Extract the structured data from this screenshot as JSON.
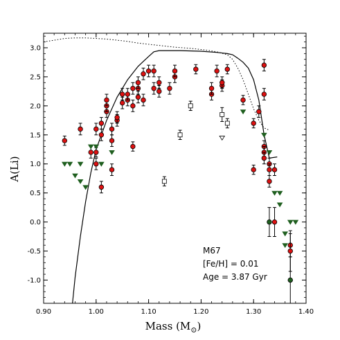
{
  "chart_data": {
    "type": "scatter",
    "title": "",
    "xlabel_main": "Mass (M",
    "xlabel_sub": "⊙",
    "xlabel_close": ")",
    "ylabel": "A(Li)",
    "xlim": [
      0.9,
      1.4
    ],
    "ylim": [
      -1.4,
      3.25
    ],
    "xticks": [
      0.9,
      1.0,
      1.1,
      1.2,
      1.3,
      1.4
    ],
    "xtick_labels": [
      "0.90",
      "1.00",
      "1.10",
      "1.20",
      "1.30",
      "1.40"
    ],
    "yticks": [
      -1.0,
      -0.5,
      0.0,
      0.5,
      1.0,
      1.5,
      2.0,
      2.5,
      3.0
    ],
    "ytick_labels": [
      "-1.0",
      "-0.5",
      "0.0",
      "0.5",
      "1.0",
      "1.5",
      "2.0",
      "2.5",
      "3.0"
    ],
    "annotation": [
      "M67",
      "[Fe/H] = 0.01",
      "Age = 3.87 Gyr"
    ],
    "colors": {
      "detection": "#dd1111",
      "upper_limit": "#1f5f1f",
      "open_square": "#ffffff",
      "axes": "#000000"
    },
    "series": [
      {
        "marker": "filled-circle",
        "points": [
          [
            0.94,
            1.4,
            0.08
          ],
          [
            0.97,
            1.6,
            0.1
          ],
          [
            0.99,
            1.2,
            0.1
          ],
          [
            1.0,
            1.0,
            0.1
          ],
          [
            1.0,
            1.2,
            0.08
          ],
          [
            1.0,
            1.6,
            0.1
          ],
          [
            1.01,
            0.6,
            0.1
          ],
          [
            1.01,
            1.5,
            0.1
          ],
          [
            1.01,
            1.7,
            0.1
          ],
          [
            1.02,
            1.9,
            0.1
          ],
          [
            1.02,
            2.0,
            0.1
          ],
          [
            1.02,
            2.1,
            0.1
          ],
          [
            1.03,
            0.9,
            0.1
          ],
          [
            1.03,
            1.4,
            0.1
          ],
          [
            1.03,
            1.6,
            0.1
          ],
          [
            1.04,
            1.75,
            0.1
          ],
          [
            1.04,
            1.8,
            0.1
          ],
          [
            1.05,
            2.05,
            0.1
          ],
          [
            1.05,
            2.2,
            0.1
          ],
          [
            1.06,
            2.1,
            0.1
          ],
          [
            1.06,
            2.2,
            0.1
          ],
          [
            1.07,
            1.3,
            0.08
          ],
          [
            1.07,
            2.0,
            0.1
          ],
          [
            1.07,
            2.3,
            0.1
          ],
          [
            1.08,
            2.15,
            0.1
          ],
          [
            1.08,
            2.3,
            0.1
          ],
          [
            1.08,
            2.4,
            0.1
          ],
          [
            1.09,
            2.1,
            0.1
          ],
          [
            1.09,
            2.55,
            0.1
          ],
          [
            1.1,
            2.6,
            0.1
          ],
          [
            1.11,
            2.3,
            0.1
          ],
          [
            1.11,
            2.6,
            0.1
          ],
          [
            1.12,
            2.25,
            0.1
          ],
          [
            1.12,
            2.4,
            0.1
          ],
          [
            1.14,
            2.3,
            0.1
          ],
          [
            1.15,
            2.5,
            0.1
          ],
          [
            1.15,
            2.6,
            0.1
          ],
          [
            1.19,
            2.63,
            0.08
          ],
          [
            1.22,
            2.2,
            0.1
          ],
          [
            1.22,
            2.3,
            0.1
          ],
          [
            1.23,
            2.6,
            0.1
          ],
          [
            1.24,
            2.35,
            0.1
          ],
          [
            1.24,
            2.4,
            0.1
          ],
          [
            1.25,
            2.63,
            0.08
          ],
          [
            1.28,
            2.1,
            0.08
          ],
          [
            1.3,
            1.7,
            0.08
          ],
          [
            1.3,
            0.9,
            0.08
          ],
          [
            1.31,
            1.9,
            0.1
          ],
          [
            1.32,
            2.7,
            0.1
          ],
          [
            1.32,
            2.2,
            0.1
          ],
          [
            1.32,
            1.3,
            0.1
          ],
          [
            1.32,
            1.2,
            0.1
          ],
          [
            1.32,
            1.1,
            0.1
          ],
          [
            1.33,
            1.0,
            0.1
          ],
          [
            1.33,
            0.9,
            0.1
          ],
          [
            1.33,
            0.7,
            0.1
          ],
          [
            1.34,
            0.9,
            0.1
          ],
          [
            1.34,
            0.0,
            0.25
          ],
          [
            1.37,
            -0.4,
            0.2
          ],
          [
            1.37,
            -0.5,
            0.35
          ]
        ]
      },
      {
        "marker": "filled-circle-upper-limit",
        "points": [
          [
            1.33,
            0.0,
            0.25
          ],
          [
            1.37,
            -1.0,
            0.4
          ]
        ]
      },
      {
        "marker": "open-square",
        "points": [
          [
            1.13,
            0.7,
            0.08
          ],
          [
            1.16,
            1.5,
            0.08
          ],
          [
            1.18,
            2.0,
            0.08
          ],
          [
            1.24,
            1.85,
            0.12
          ],
          [
            1.25,
            1.7,
            0.08
          ]
        ]
      },
      {
        "marker": "open-triangle-down",
        "points": [
          [
            1.24,
            1.45
          ]
        ]
      },
      {
        "marker": "filled-triangle-down",
        "points": [
          [
            0.94,
            1.0
          ],
          [
            0.95,
            1.0
          ],
          [
            0.96,
            0.8
          ],
          [
            0.97,
            1.0
          ],
          [
            0.97,
            0.7
          ],
          [
            0.98,
            0.6
          ],
          [
            0.99,
            1.3
          ],
          [
            1.0,
            1.3
          ],
          [
            1.01,
            1.0
          ],
          [
            1.03,
            1.2
          ],
          [
            1.28,
            1.9
          ],
          [
            1.32,
            1.5
          ],
          [
            1.33,
            1.2
          ],
          [
            1.34,
            0.5
          ],
          [
            1.35,
            0.5
          ],
          [
            1.35,
            0.3
          ],
          [
            1.36,
            -0.2
          ],
          [
            1.36,
            -0.4
          ],
          [
            1.37,
            0.0
          ],
          [
            1.38,
            0.0
          ]
        ]
      }
    ],
    "model_solid": [
      [
        0.955,
        -1.4
      ],
      [
        0.96,
        -0.95
      ],
      [
        0.97,
        -0.25
      ],
      [
        0.98,
        0.35
      ],
      [
        0.99,
        0.85
      ],
      [
        1.0,
        1.25
      ],
      [
        1.02,
        1.75
      ],
      [
        1.04,
        2.15
      ],
      [
        1.06,
        2.45
      ],
      [
        1.08,
        2.68
      ],
      [
        1.1,
        2.85
      ],
      [
        1.11,
        2.93
      ],
      [
        1.12,
        2.95
      ],
      [
        1.16,
        2.95
      ],
      [
        1.2,
        2.94
      ],
      [
        1.23,
        2.92
      ],
      [
        1.25,
        2.9
      ],
      [
        1.26,
        2.88
      ],
      [
        1.27,
        2.82
      ],
      [
        1.28,
        2.75
      ],
      [
        1.29,
        2.65
      ],
      [
        1.3,
        2.45
      ],
      [
        1.31,
        2.1
      ],
      [
        1.32,
        1.5
      ],
      [
        1.33,
        1.1
      ],
      [
        1.345,
        1.12
      ]
    ],
    "model_dotted": [
      [
        0.9,
        3.1
      ],
      [
        0.92,
        3.13
      ],
      [
        0.94,
        3.16
      ],
      [
        0.96,
        3.17
      ],
      [
        0.98,
        3.17
      ],
      [
        1.0,
        3.16
      ],
      [
        1.02,
        3.15
      ],
      [
        1.04,
        3.13
      ],
      [
        1.06,
        3.11
      ],
      [
        1.08,
        3.08
      ],
      [
        1.1,
        3.06
      ],
      [
        1.12,
        3.04
      ],
      [
        1.15,
        3.01
      ],
      [
        1.18,
        2.99
      ],
      [
        1.21,
        2.96
      ],
      [
        1.23,
        2.93
      ],
      [
        1.25,
        2.88
      ],
      [
        1.26,
        2.8
      ],
      [
        1.27,
        2.65
      ],
      [
        1.28,
        2.45
      ],
      [
        1.29,
        2.2
      ],
      [
        1.3,
        1.95
      ],
      [
        1.31,
        1.75
      ],
      [
        1.32,
        1.62
      ],
      [
        1.33,
        1.58
      ]
    ]
  }
}
